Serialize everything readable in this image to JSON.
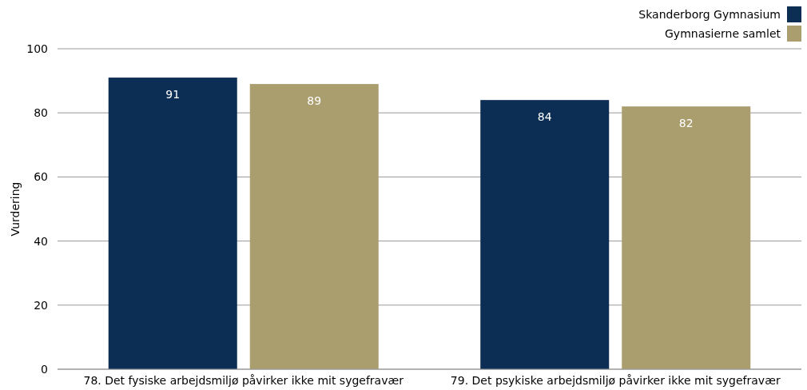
{
  "chart_data": {
    "type": "bar",
    "ylabel": "Vurdering",
    "categories": [
      "78. Det fysiske arbejdsmiljø påvirker ikke mit sygefravær",
      "79. Det psykiske arbejdsmiljø påvirker ikke mit sygefravær"
    ],
    "series": [
      {
        "name": "Skanderborg Gymnasium",
        "color": "#0c2e55",
        "values": [
          91,
          84
        ]
      },
      {
        "name": "Gymnasierne samlet",
        "color": "#aa9d6e",
        "values": [
          89,
          82
        ]
      }
    ],
    "ylim": [
      0,
      100
    ],
    "yticks": [
      0,
      20,
      40,
      60,
      80,
      100
    ],
    "grid": "y",
    "legend": "top right",
    "data_labels": true
  }
}
